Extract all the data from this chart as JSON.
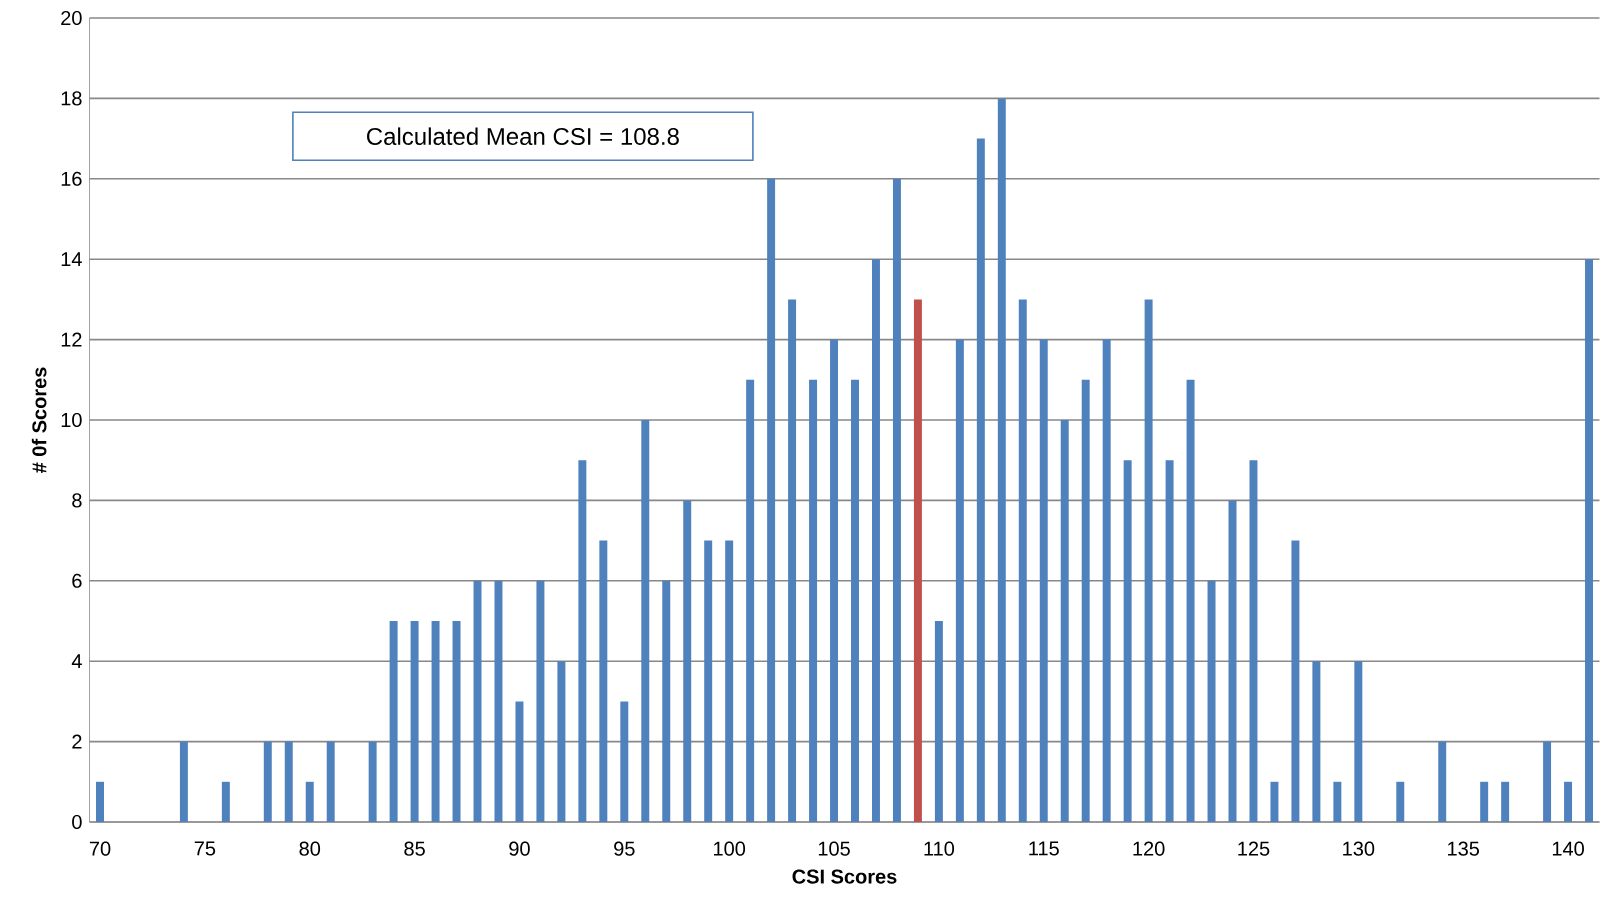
{
  "chart_data": {
    "type": "bar",
    "xlabel": "CSI Scores",
    "ylabel": "# 0f Scores",
    "annotations": [
      "Calculated Mean CSI = 108.8"
    ],
    "categories": [
      "70",
      null,
      null,
      null,
      null,
      "75",
      null,
      null,
      null,
      null,
      "80",
      null,
      null,
      null,
      null,
      "85",
      null,
      null,
      null,
      null,
      "90",
      null,
      null,
      null,
      null,
      "95",
      null,
      null,
      null,
      null,
      "100",
      null,
      null,
      null,
      null,
      "105",
      null,
      null,
      null,
      null,
      "110",
      null,
      null,
      null,
      null,
      "115",
      null,
      null,
      null,
      null,
      "120",
      null,
      null,
      null,
      null,
      "125",
      null,
      null,
      null,
      null,
      "130",
      null,
      null,
      null,
      null,
      "135",
      null,
      null,
      null,
      null,
      "140",
      null
    ],
    "values": [
      1,
      0,
      0,
      0,
      2,
      0,
      1,
      0,
      2,
      2,
      1,
      2,
      0,
      2,
      5,
      5,
      5,
      5,
      6,
      6,
      3,
      6,
      4,
      9,
      7,
      3,
      10,
      6,
      8,
      7,
      7,
      11,
      16,
      13,
      11,
      12,
      11,
      14,
      16,
      13,
      5,
      12,
      17,
      18,
      13,
      12,
      10,
      11,
      12,
      9,
      13,
      9,
      11,
      6,
      8,
      9,
      1,
      7,
      4,
      1,
      4,
      0,
      1,
      0,
      2,
      0,
      1,
      1,
      0,
      2,
      1,
      14
    ],
    "colors": [
      "#4f81bd",
      "#4f81bd",
      "#4f81bd",
      "#4f81bd",
      "#4f81bd",
      "#4f81bd",
      "#4f81bd",
      "#4f81bd",
      "#4f81bd",
      "#4f81bd",
      "#4f81bd",
      "#4f81bd",
      "#4f81bd",
      "#4f81bd",
      "#4f81bd",
      "#4f81bd",
      "#4f81bd",
      "#4f81bd",
      "#4f81bd",
      "#4f81bd",
      "#4f81bd",
      "#4f81bd",
      "#4f81bd",
      "#4f81bd",
      "#4f81bd",
      "#4f81bd",
      "#4f81bd",
      "#4f81bd",
      "#4f81bd",
      "#4f81bd",
      "#4f81bd",
      "#4f81bd",
      "#4f81bd",
      "#4f81bd",
      "#4f81bd",
      "#4f81bd",
      "#4f81bd",
      "#4f81bd",
      "#4f81bd",
      "#c0504d",
      "#4f81bd",
      "#4f81bd",
      "#4f81bd",
      "#4f81bd",
      "#4f81bd",
      "#4f81bd",
      "#4f81bd",
      "#4f81bd",
      "#4f81bd",
      "#4f81bd",
      "#4f81bd",
      "#4f81bd",
      "#4f81bd",
      "#4f81bd",
      "#4f81bd",
      "#4f81bd",
      "#4f81bd",
      "#4f81bd",
      "#4f81bd",
      "#4f81bd",
      "#4f81bd",
      "#4f81bd",
      "#4f81bd",
      "#4f81bd",
      "#4f81bd",
      "#4f81bd",
      "#4f81bd",
      "#4f81bd",
      "#4f81bd",
      "#4f81bd",
      "#4f81bd",
      "#4f81bd"
    ],
    "ylim": [
      0,
      20
    ],
    "yticks": [
      0,
      2,
      4,
      6,
      8,
      10,
      12,
      14,
      16,
      18,
      20
    ],
    "grid": "y"
  }
}
